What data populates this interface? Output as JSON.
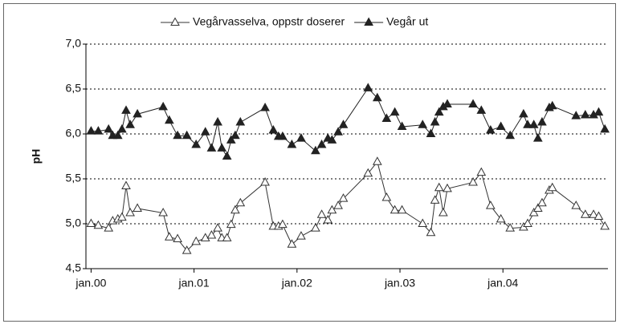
{
  "chart_data": {
    "type": "line",
    "y_label": "pH",
    "x": [
      2000.0,
      2000.07,
      2000.17,
      2000.21,
      2000.26,
      2000.3,
      2000.34,
      2000.38,
      2000.45,
      2000.7,
      2000.76,
      2000.84,
      2000.93,
      2001.02,
      2001.11,
      2001.17,
      2001.23,
      2001.27,
      2001.32,
      2001.36,
      2001.4,
      2001.45,
      2001.69,
      2001.77,
      2001.82,
      2001.86,
      2001.95,
      2002.04,
      2002.18,
      2002.24,
      2002.3,
      2002.34,
      2002.4,
      2002.45,
      2002.69,
      2002.78,
      2002.87,
      2002.95,
      2003.02,
      2003.22,
      2003.3,
      2003.34,
      2003.38,
      2003.42,
      2003.46,
      2003.71,
      2003.79,
      2003.88,
      2003.98,
      2004.07,
      2004.2,
      2004.24,
      2004.3,
      2004.34,
      2004.38,
      2004.45,
      2004.48,
      2004.71,
      2004.8,
      2004.88,
      2004.93,
      2004.99
    ],
    "series": [
      {
        "name": "Vegårvasselva, oppstr doserer",
        "color": "#333333",
        "marker": "open-triangle",
        "values": [
          5.0,
          4.98,
          4.95,
          5.03,
          5.05,
          5.07,
          5.42,
          5.12,
          5.17,
          5.12,
          4.85,
          4.83,
          4.7,
          4.8,
          4.84,
          4.87,
          4.95,
          4.84,
          4.84,
          4.99,
          5.15,
          5.23,
          5.46,
          4.97,
          4.97,
          4.99,
          4.77,
          4.86,
          4.95,
          5.1,
          5.04,
          5.15,
          5.2,
          5.28,
          5.56,
          5.69,
          5.29,
          5.15,
          5.15,
          5.0,
          4.9,
          5.26,
          5.4,
          5.12,
          5.39,
          5.46,
          5.57,
          5.2,
          5.05,
          4.95,
          4.96,
          5.0,
          5.12,
          5.17,
          5.23,
          5.37,
          5.4,
          5.2,
          5.1,
          5.1,
          5.08,
          4.97
        ]
      },
      {
        "name": "Vegår ut",
        "color": "#222222",
        "marker": "filled-triangle",
        "values": [
          6.03,
          6.03,
          6.05,
          5.98,
          5.98,
          6.05,
          6.26,
          6.1,
          6.22,
          6.3,
          6.15,
          5.98,
          5.98,
          5.88,
          6.02,
          5.84,
          6.13,
          5.84,
          5.75,
          5.93,
          5.98,
          6.13,
          6.29,
          6.04,
          5.97,
          5.97,
          5.88,
          5.95,
          5.81,
          5.88,
          5.95,
          5.93,
          6.02,
          6.1,
          6.51,
          6.4,
          6.17,
          6.24,
          6.08,
          6.1,
          6.0,
          6.13,
          6.24,
          6.3,
          6.33,
          6.33,
          6.26,
          6.04,
          6.08,
          5.98,
          6.22,
          6.1,
          6.1,
          5.95,
          6.13,
          6.29,
          6.31,
          6.2,
          6.21,
          6.21,
          6.24,
          6.05
        ]
      }
    ],
    "xlim": [
      1999.95,
      2005.02
    ],
    "xticks": [
      {
        "value": 2000,
        "label": "jan.00"
      },
      {
        "value": 2001,
        "label": "jan.01"
      },
      {
        "value": 2002,
        "label": "jan.02"
      },
      {
        "value": 2003,
        "label": "jan.03"
      },
      {
        "value": 2004,
        "label": "jan.04"
      }
    ],
    "ylim": [
      4.5,
      7
    ],
    "yticks": [
      {
        "value": 4.5,
        "label": "4,5"
      },
      {
        "value": 5,
        "label": "5,0"
      },
      {
        "value": 5.5,
        "label": "5,5"
      },
      {
        "value": 6,
        "label": "6,0"
      },
      {
        "value": 6.5,
        "label": "6,5"
      },
      {
        "value": 7,
        "label": "7,0"
      }
    ],
    "grid": true
  }
}
